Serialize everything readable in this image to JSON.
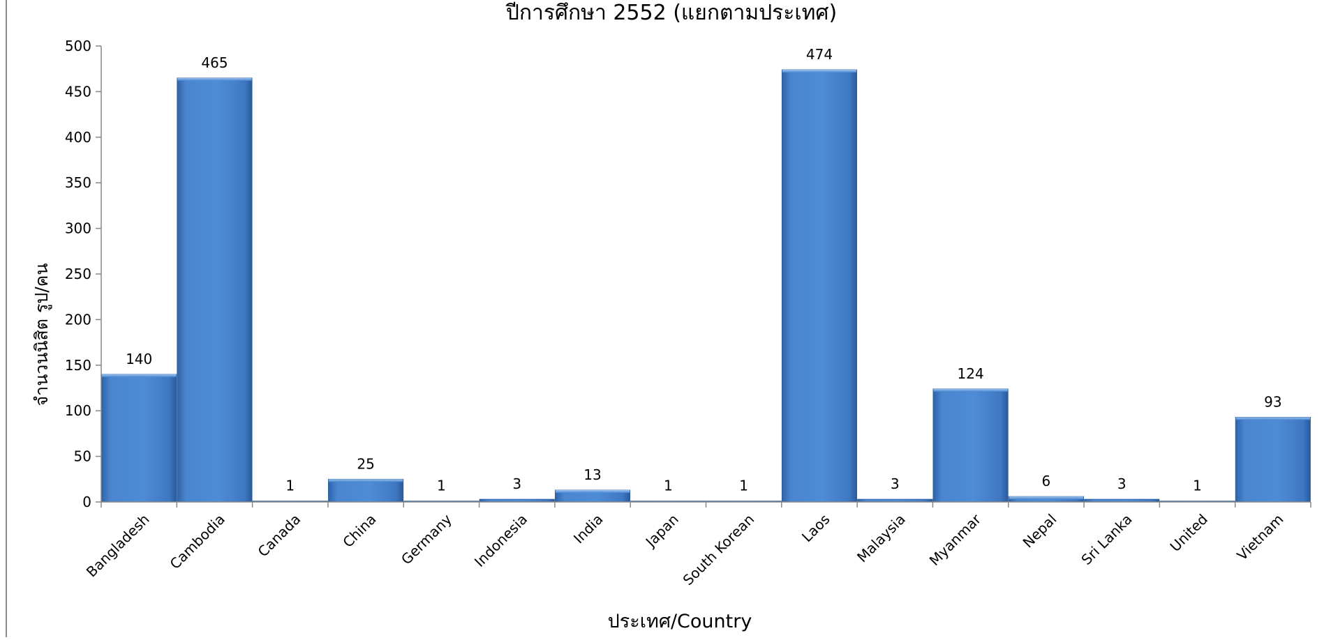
{
  "chart_data": {
    "type": "bar",
    "title": "ปีการศึกษา 2552 (แยกตามประเทศ)",
    "xlabel": "ประเทศ/Country",
    "ylabel": "จำนวนนิสิต รูป/คน",
    "ylim": [
      0,
      500
    ],
    "yticks": [
      0,
      50,
      100,
      150,
      200,
      250,
      300,
      350,
      400,
      450,
      500
    ],
    "categories": [
      "Bangladesh",
      "Cambodia",
      "Canada",
      "China",
      "Germany",
      "Indonesia",
      "India",
      "Japan",
      "South Korean",
      "Laos",
      "Malaysia",
      "Myanmar",
      "Nepal",
      "Sri Lanka",
      "United",
      "Vietnam"
    ],
    "values": [
      140,
      465,
      1,
      25,
      1,
      3,
      13,
      1,
      1,
      474,
      3,
      124,
      6,
      3,
      1,
      93
    ],
    "grid": false,
    "legend": "none",
    "bar_color": "#4a86d0"
  }
}
